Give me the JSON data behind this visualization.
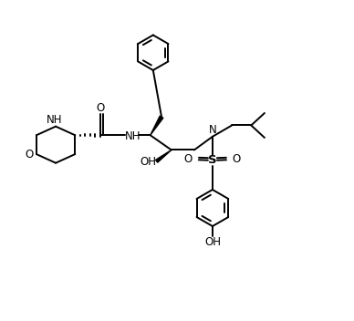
{
  "background": "#ffffff",
  "line_color": "#000000",
  "line_width": 1.4,
  "font_size": 8.5,
  "figsize": [
    3.88,
    3.52
  ],
  "dpi": 100,
  "xlim": [
    0,
    10
  ],
  "ylim": [
    0,
    9.1
  ]
}
